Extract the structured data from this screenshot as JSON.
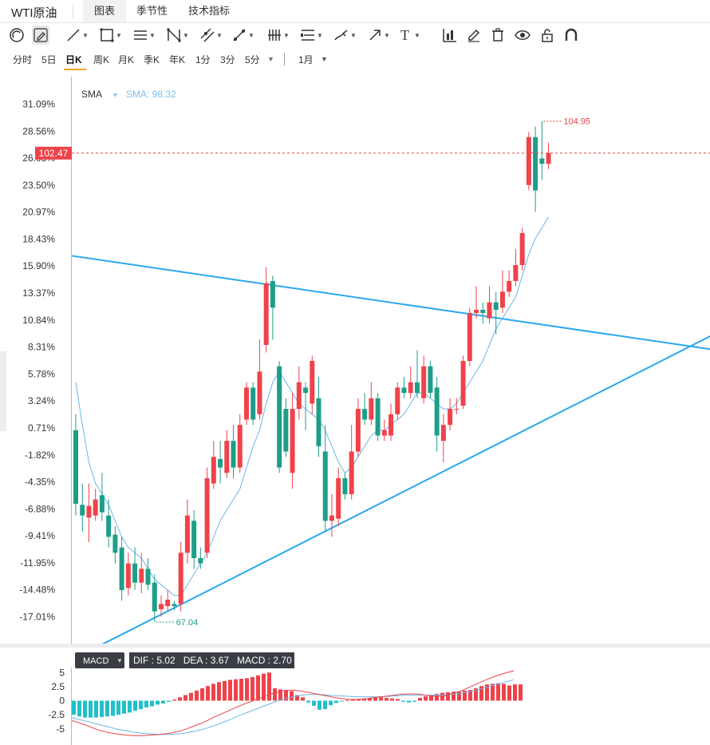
{
  "header": {
    "title": "WTI原油",
    "tabs": [
      {
        "label": "图表",
        "active": true
      },
      {
        "label": "季节性",
        "active": false
      },
      {
        "label": "技术指标",
        "active": false
      }
    ]
  },
  "toolbar": {
    "tools": [
      {
        "icon": "magnet-icon"
      },
      {
        "icon": "pencil-edit-icon"
      },
      {
        "icon": "trend-line-icon"
      },
      {
        "icon": "rectangle-icon"
      },
      {
        "icon": "horizontal-lines-icon"
      },
      {
        "icon": "pattern-icon"
      },
      {
        "icon": "parallel-channel-icon"
      },
      {
        "icon": "fibonacci-icon"
      },
      {
        "icon": "gann-icon"
      },
      {
        "icon": "measure-icon"
      },
      {
        "icon": "brush-icon"
      },
      {
        "icon": "arrow-icon"
      },
      {
        "icon": "text-icon"
      },
      {
        "icon": "bar-chart-icon"
      },
      {
        "icon": "pen-icon"
      },
      {
        "icon": "trash-icon"
      },
      {
        "icon": "eye-icon"
      },
      {
        "icon": "lock-icon"
      },
      {
        "icon": "magnet-u-icon"
      }
    ],
    "text_tool_label": "T"
  },
  "periods": {
    "items": [
      "分时",
      "5日",
      "日K",
      "周K",
      "月K",
      "季K",
      "年K",
      "1分",
      "3分",
      "5分"
    ],
    "active": "日K",
    "more_caret": "▼",
    "range_label": "1月",
    "range_caret": "▼"
  },
  "indicator": {
    "name": "SMA",
    "caret": "▼",
    "value_label": "SMA: 98.32"
  },
  "price_labels": {
    "last_price": "102.47",
    "high_label": "104.95",
    "low_label": "67.04"
  },
  "macd": {
    "name": "MACD",
    "caret": "▼",
    "readout": "DIF : 5.02   DEA : 3.67   MACD : 2.70",
    "axis_ticks": [
      "5",
      "2.5",
      "0",
      "-2.5",
      "-5"
    ]
  },
  "colors": {
    "up": "#f0424a",
    "down": "#1e9e89",
    "trendline": "#29a8f0",
    "sma": "#6ab8e8",
    "macd_pos": "#f0424a",
    "macd_neg": "#22bfca",
    "dif": "#e8444a",
    "dea": "#6ab8e8"
  },
  "chart_data": {
    "type": "candlestick",
    "indicator": "SMA",
    "yaxis_ticks": [
      "31.09%",
      "28.56%",
      "26.03%",
      "23.50%",
      "20.97%",
      "18.43%",
      "15.90%",
      "13.37%",
      "10.84%",
      "8.31%",
      "5.78%",
      "3.24%",
      "0.71%",
      "-1.82%",
      "-4.35%",
      "-6.88%",
      "-9.41%",
      "-11.95%",
      "-14.48%",
      "-17.01%"
    ],
    "ylim_pct": [
      -17.01,
      31.09
    ],
    "last_price": 102.47,
    "high": 104.95,
    "low": 67.04,
    "candles": [
      {
        "o": 0.5,
        "c": -6.4,
        "h": 2.0,
        "l": -7.5
      },
      {
        "o": -6.5,
        "c": -7.5,
        "h": -4.5,
        "l": -9.0
      },
      {
        "o": -7.7,
        "c": -6.6,
        "h": -4.5,
        "l": -10.0
      },
      {
        "o": -7.5,
        "c": -6.0,
        "h": -5.0,
        "l": -8.0
      },
      {
        "o": -5.6,
        "c": -7.2,
        "h": -3.5,
        "l": -8.0
      },
      {
        "o": -7.5,
        "c": -9.5,
        "h": -6.0,
        "l": -10.5
      },
      {
        "o": -9.3,
        "c": -11.0,
        "h": -8.5,
        "l": -12.0
      },
      {
        "o": -10.5,
        "c": -14.5,
        "h": -9.5,
        "l": -15.5
      },
      {
        "o": -14.3,
        "c": -12.0,
        "h": -11.0,
        "l": -15.0
      },
      {
        "o": -12.0,
        "c": -13.8,
        "h": -10.5,
        "l": -14.5
      },
      {
        "o": -13.8,
        "c": -12.5,
        "h": -11.0,
        "l": -14.8
      },
      {
        "o": -12.5,
        "c": -14.0,
        "h": -11.5,
        "l": -14.5
      },
      {
        "o": -13.8,
        "c": -16.5,
        "h": -13.0,
        "l": -17.5
      },
      {
        "o": -16.3,
        "c": -15.8,
        "h": -15.0,
        "l": -17.0
      },
      {
        "o": -16.0,
        "c": -15.4,
        "h": -14.5,
        "l": -16.5
      },
      {
        "o": -15.8,
        "c": -16.0,
        "h": -15.5,
        "l": -16.4
      },
      {
        "o": -15.8,
        "c": -11.0,
        "h": -10.0,
        "l": -16.5
      },
      {
        "o": -11.0,
        "c": -7.5,
        "h": -6.0,
        "l": -12.0
      },
      {
        "o": -8.0,
        "c": -11.5,
        "h": -7.0,
        "l": -12.5
      },
      {
        "o": -11.5,
        "c": -12.0,
        "h": -10.5,
        "l": -12.5
      },
      {
        "o": -11.0,
        "c": -4.0,
        "h": -3.0,
        "l": -11.5
      },
      {
        "o": -4.5,
        "c": -2.0,
        "h": -0.5,
        "l": -5.0
      },
      {
        "o": -2.2,
        "c": -3.0,
        "h": -0.5,
        "l": -4.5
      },
      {
        "o": -3.5,
        "c": -0.5,
        "h": 0.5,
        "l": -4.0
      },
      {
        "o": -0.5,
        "c": -3.0,
        "h": 1.0,
        "l": -4.0
      },
      {
        "o": -3.0,
        "c": 1.0,
        "h": 2.0,
        "l": -3.5
      },
      {
        "o": 1.5,
        "c": 4.5,
        "h": 5.0,
        "l": 1.0
      },
      {
        "o": 4.5,
        "c": 1.5,
        "h": 5.0,
        "l": 1.0
      },
      {
        "o": 2.0,
        "c": 6.0,
        "h": 9.0,
        "l": 1.5
      },
      {
        "o": 8.5,
        "c": 14.3,
        "h": 15.8,
        "l": 7.8
      },
      {
        "o": 14.5,
        "c": 12.0,
        "h": 15.0,
        "l": 9.0
      },
      {
        "o": 6.5,
        "c": -3.0,
        "h": 7.0,
        "l": -3.5
      },
      {
        "o": 2.5,
        "c": -1.5,
        "h": 3.5,
        "l": -2.0
      },
      {
        "o": -3.5,
        "c": 2.5,
        "h": 4.0,
        "l": -5.0
      },
      {
        "o": 2.5,
        "c": 5.0,
        "h": 6.5,
        "l": 1.5
      },
      {
        "o": 4.5,
        "c": 4.0,
        "h": 5.0,
        "l": 0.5
      },
      {
        "o": 3.0,
        "c": 7.0,
        "h": 7.5,
        "l": 2.0
      },
      {
        "o": 3.5,
        "c": -1.0,
        "h": 5.5,
        "l": -2.0
      },
      {
        "o": -1.5,
        "c": -8.0,
        "h": 1.0,
        "l": -9.0
      },
      {
        "o": -8.0,
        "c": -7.5,
        "h": -5.5,
        "l": -9.5
      },
      {
        "o": -7.8,
        "c": -4.0,
        "h": -3.0,
        "l": -8.5
      },
      {
        "o": -4.0,
        "c": -5.5,
        "h": -3.5,
        "l": -6.0
      },
      {
        "o": -5.5,
        "c": -1.5,
        "h": 1.0,
        "l": -6.0
      },
      {
        "o": -1.5,
        "c": 2.5,
        "h": 3.5,
        "l": -2.0
      },
      {
        "o": 2.5,
        "c": 1.5,
        "h": 4.0,
        "l": 1.0
      },
      {
        "o": 1.5,
        "c": 3.5,
        "h": 5.0,
        "l": 1.0
      },
      {
        "o": 3.5,
        "c": 0.0,
        "h": 4.0,
        "l": -0.5
      },
      {
        "o": 0.0,
        "c": 0.5,
        "h": 1.5,
        "l": -0.5
      },
      {
        "o": 0.0,
        "c": 2.0,
        "h": 3.0,
        "l": -0.5
      },
      {
        "o": 2.0,
        "c": 4.5,
        "h": 5.0,
        "l": 1.5
      },
      {
        "o": 4.5,
        "c": 4.0,
        "h": 5.5,
        "l": 3.5
      },
      {
        "o": 4.0,
        "c": 5.0,
        "h": 6.5,
        "l": 3.5
      },
      {
        "o": 5.0,
        "c": 4.0,
        "h": 8.0,
        "l": 3.5
      },
      {
        "o": 3.5,
        "c": 6.5,
        "h": 7.5,
        "l": 3.0
      },
      {
        "o": 6.5,
        "c": 4.0,
        "h": 7.0,
        "l": 3.5
      },
      {
        "o": 4.5,
        "c": 0.0,
        "h": 5.5,
        "l": -1.5
      },
      {
        "o": -0.5,
        "c": 1.0,
        "h": 2.0,
        "l": -2.5
      },
      {
        "o": 1.0,
        "c": 2.5,
        "h": 3.5,
        "l": 0.5
      },
      {
        "o": 2.5,
        "c": 2.5,
        "h": 3.5,
        "l": 2.0
      },
      {
        "o": 2.8,
        "c": 7.0,
        "h": 7.5,
        "l": 2.5
      },
      {
        "o": 7.0,
        "c": 11.5,
        "h": 12.0,
        "l": 6.5
      },
      {
        "o": 11.5,
        "c": 11.8,
        "h": 14.0,
        "l": 11.0
      },
      {
        "o": 11.8,
        "c": 11.5,
        "h": 12.5,
        "l": 10.5
      },
      {
        "o": 11.0,
        "c": 12.5,
        "h": 14.0,
        "l": 10.5
      },
      {
        "o": 12.5,
        "c": 11.8,
        "h": 13.5,
        "l": 9.5
      },
      {
        "o": 12.0,
        "c": 13.5,
        "h": 15.5,
        "l": 11.5
      },
      {
        "o": 13.5,
        "c": 14.5,
        "h": 15.5,
        "l": 13.0
      },
      {
        "o": 14.5,
        "c": 16.0,
        "h": 17.5,
        "l": 14.0
      },
      {
        "o": 16.0,
        "c": 19.0,
        "h": 19.5,
        "l": 15.5
      },
      {
        "o": 23.5,
        "c": 28.0,
        "h": 28.5,
        "l": 23.0
      },
      {
        "o": 28.0,
        "c": 23.0,
        "h": 29.0,
        "l": 21.0
      },
      {
        "o": 26.0,
        "c": 25.5,
        "h": 29.5,
        "l": 24.0
      },
      {
        "o": 25.5,
        "c": 26.5,
        "h": 27.5,
        "l": 25.0
      }
    ],
    "sma": [
      5.0,
      1.0,
      -2.5,
      -4.5,
      -5.5,
      -6.5,
      -8.0,
      -9.5,
      -10.5,
      -11.0,
      -11.5,
      -12.5,
      -13.5,
      -14.0,
      -14.5,
      -15.0,
      -15.0,
      -14.0,
      -13.0,
      -12.0,
      -11.0,
      -9.5,
      -8.0,
      -7.0,
      -6.0,
      -5.0,
      -3.0,
      -1.0,
      0.5,
      3.0,
      5.0,
      6.0,
      5.0,
      4.0,
      3.0,
      2.5,
      2.0,
      1.5,
      0.5,
      -1.0,
      -2.5,
      -3.5,
      -3.0,
      -2.0,
      -1.0,
      0.0,
      0.5,
      0.5,
      1.0,
      1.5,
      2.0,
      3.0,
      4.0,
      4.0,
      3.5,
      3.0,
      2.5,
      2.5,
      3.0,
      4.0,
      5.0,
      6.0,
      7.0,
      8.5,
      10.0,
      11.0,
      12.0,
      13.0,
      15.0,
      17.0,
      18.5,
      19.5,
      20.5
    ],
    "trendlines": [
      {
        "from": {
          "i": -1,
          "p": 16.9
        },
        "to": {
          "i": 110,
          "p": 6.9
        }
      },
      {
        "from": {
          "i": 4,
          "p": -19.6
        },
        "to": {
          "i": 110,
          "p": 13.5
        }
      }
    ],
    "macd_hist": [
      -2.5,
      -2.8,
      -3.0,
      -3.0,
      -3.0,
      -2.9,
      -2.8,
      -2.7,
      -2.5,
      -2.3,
      -2.1,
      -1.8,
      -1.5,
      -1.2,
      -1.0,
      -0.7,
      -0.5,
      -0.2,
      0.2,
      0.6,
      1.0,
      1.4,
      1.8,
      2.2,
      2.6,
      3.0,
      3.3,
      3.5,
      3.7,
      3.8,
      3.9,
      4.0,
      4.2,
      4.5,
      4.8,
      5.0,
      2.2,
      2.0,
      1.9,
      1.7,
      1.0,
      0.6,
      -0.3,
      -0.9,
      -1.6,
      -1.5,
      -0.8,
      -0.4,
      -0.1,
      0.1,
      0.2,
      0.3,
      0.4,
      0.5,
      0.6,
      0.6,
      0.5,
      0.4,
      0.3,
      -0.2,
      -0.3,
      -0.2,
      0.5,
      0.8,
      1.0,
      1.2,
      1.4,
      1.5,
      1.6,
      1.6,
      1.8,
      1.9,
      2.2,
      2.6,
      2.9,
      3.0,
      3.1,
      3.0,
      2.7,
      2.9,
      2.9
    ],
    "dif": [
      -3.5,
      -4.0,
      -4.6,
      -5.2,
      -5.6,
      -5.9,
      -6.1,
      -6.2,
      -6.2,
      -6.1,
      -6.0,
      -5.8,
      -5.5,
      -5.0,
      -4.4,
      -3.8,
      -3.0,
      -2.3,
      -1.6,
      -0.9,
      -0.3,
      0.3,
      0.9,
      1.4,
      1.8,
      1.9,
      1.7,
      1.4,
      1.1,
      0.8,
      0.5,
      0.3,
      0.2,
      0.3,
      0.5,
      0.7,
      0.9,
      1.1,
      1.2,
      1.2,
      1.0,
      0.8,
      0.8,
      1.2,
      1.7,
      2.4,
      3.1,
      3.8,
      4.4,
      4.9,
      5.3
    ],
    "dea": [
      -3.0,
      -3.4,
      -3.8,
      -4.2,
      -4.6,
      -5.0,
      -5.3,
      -5.6,
      -5.8,
      -5.9,
      -6.0,
      -6.0,
      -5.9,
      -5.7,
      -5.4,
      -5.0,
      -4.5,
      -3.9,
      -3.3,
      -2.6,
      -2.0,
      -1.4,
      -0.8,
      -0.2,
      0.3,
      0.7,
      1.0,
      1.1,
      1.1,
      1.0,
      0.9,
      0.8,
      0.7,
      0.7,
      0.7,
      0.7,
      0.8,
      0.9,
      1.0,
      1.0,
      1.0,
      1.0,
      1.0,
      1.1,
      1.3,
      1.6,
      2.0,
      2.4,
      2.9,
      3.3,
      3.7
    ]
  }
}
